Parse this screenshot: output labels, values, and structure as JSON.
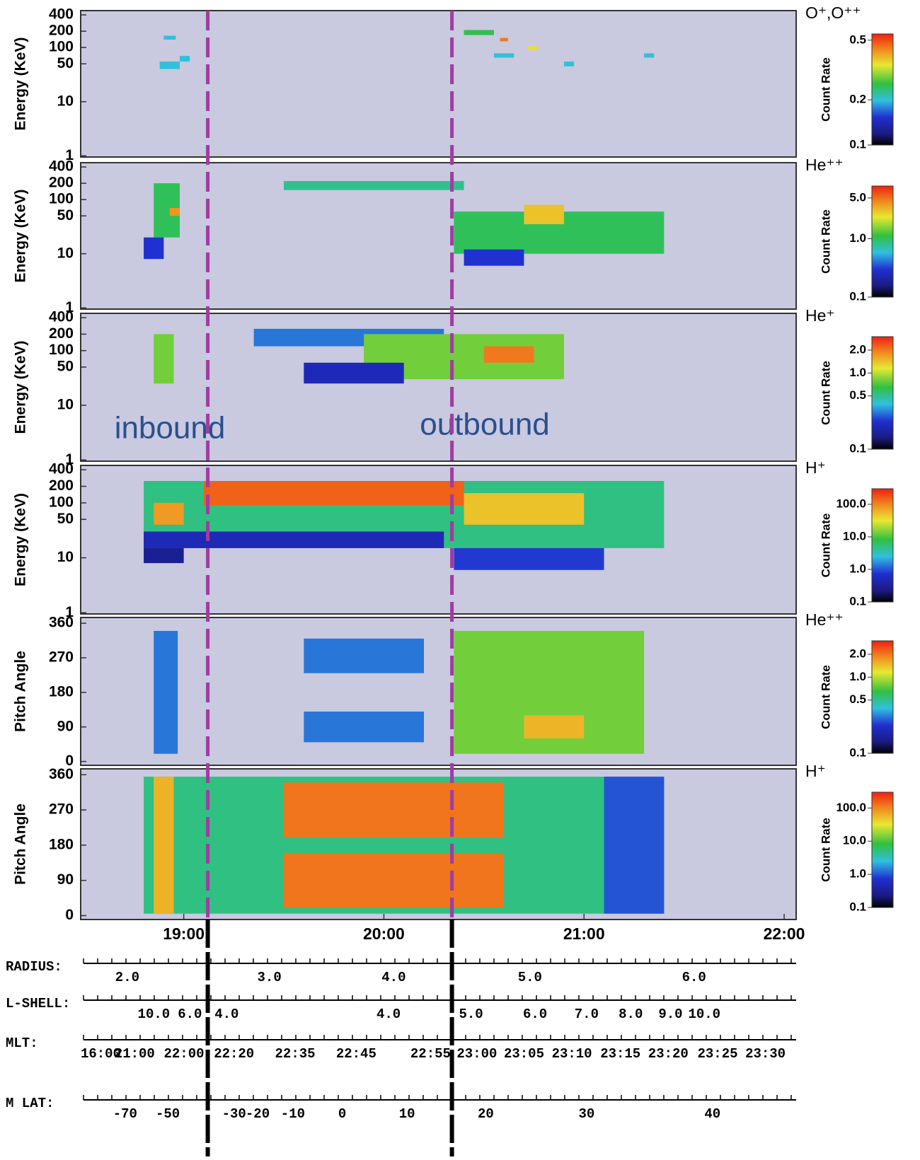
{
  "chart_data": [
    {
      "type": "spectrogram",
      "species": "O⁺,O⁺⁺",
      "ylabel": "Energy (KeV)",
      "clabel": "Count Rate",
      "log": true,
      "xlim": [
        18.485,
        22.06
      ],
      "ylim": [
        0.95,
        480
      ],
      "yticks": [
        1,
        10,
        50,
        100,
        200,
        400
      ],
      "clim": [
        0.1,
        0.55
      ],
      "cticks": [
        0.1,
        0.2,
        0.5
      ],
      "cells": [
        {
          "t0": 18.88,
          "t1": 18.98,
          "y0": 40,
          "y1": 55,
          "v": 0.2
        },
        {
          "t0": 18.9,
          "t1": 18.96,
          "y0": 140,
          "y1": 165,
          "v": 0.2
        },
        {
          "t0": 18.98,
          "t1": 19.03,
          "y0": 55,
          "y1": 70,
          "v": 0.2
        },
        {
          "t0": 20.4,
          "t1": 20.55,
          "y0": 170,
          "y1": 210,
          "v": 0.25
        },
        {
          "t0": 20.55,
          "t1": 20.65,
          "y0": 65,
          "y1": 78,
          "v": 0.2
        },
        {
          "t0": 20.58,
          "t1": 20.62,
          "y0": 130,
          "y1": 150,
          "v": 0.45
        },
        {
          "t0": 20.72,
          "t1": 20.77,
          "y0": 90,
          "y1": 105,
          "v": 0.35
        },
        {
          "t0": 20.9,
          "t1": 20.95,
          "y0": 45,
          "y1": 55,
          "v": 0.2
        },
        {
          "t0": 21.3,
          "t1": 21.35,
          "y0": 65,
          "y1": 78,
          "v": 0.2
        }
      ]
    },
    {
      "type": "spectrogram",
      "species": "He⁺⁺",
      "ylabel": "Energy (KeV)",
      "clabel": "Count Rate",
      "log": true,
      "xlim": [
        18.485,
        22.06
      ],
      "ylim": [
        0.95,
        480
      ],
      "yticks": [
        1,
        10,
        50,
        100,
        200,
        400
      ],
      "clim": [
        0.1,
        8
      ],
      "cticks": [
        0.1,
        {
          "value": 1,
          "label": "1.0"
        },
        {
          "value": 5,
          "label": "5.0"
        }
      ],
      "cells": [
        {
          "t0": 18.85,
          "t1": 18.98,
          "y0": 20,
          "y1": 200,
          "v": 1.0
        },
        {
          "t0": 18.93,
          "t1": 18.98,
          "y0": 50,
          "y1": 70,
          "v": 4.0
        },
        {
          "t0": 18.8,
          "t1": 18.9,
          "y0": 8,
          "y1": 20,
          "v": 0.3
        },
        {
          "t0": 19.5,
          "t1": 20.4,
          "y0": 150,
          "y1": 220,
          "v": 0.8
        },
        {
          "t0": 20.35,
          "t1": 21.4,
          "y0": 10,
          "y1": 60,
          "v": 1.0
        },
        {
          "t0": 20.7,
          "t1": 20.9,
          "y0": 35,
          "y1": 80,
          "v": 3.0
        },
        {
          "t0": 20.4,
          "t1": 20.7,
          "y0": 6,
          "y1": 12,
          "v": 0.3
        }
      ]
    },
    {
      "type": "spectrogram",
      "species": "He⁺",
      "ylabel": "Energy (KeV)",
      "clabel": "Count Rate",
      "log": true,
      "xlim": [
        18.485,
        22.06
      ],
      "ylim": [
        0.95,
        480
      ],
      "yticks": [
        1,
        10,
        50,
        100,
        200,
        400
      ],
      "clim": [
        0.1,
        3
      ],
      "cticks": [
        0.1,
        0.5,
        {
          "value": 1,
          "label": "1.0"
        },
        {
          "value": 2,
          "label": "2.0"
        }
      ],
      "annotations": [
        "inbound",
        "outbound"
      ],
      "cells": [
        {
          "t0": 18.85,
          "t1": 18.95,
          "y0": 25,
          "y1": 200,
          "v": 0.8
        },
        {
          "t0": 19.35,
          "t1": 20.3,
          "y0": 120,
          "y1": 250,
          "v": 0.3
        },
        {
          "t0": 19.9,
          "t1": 20.9,
          "y0": 30,
          "y1": 200,
          "v": 0.8
        },
        {
          "t0": 20.5,
          "t1": 20.75,
          "y0": 60,
          "y1": 120,
          "v": 2.0
        },
        {
          "t0": 19.6,
          "t1": 20.1,
          "y0": 25,
          "y1": 60,
          "v": 0.2
        }
      ]
    },
    {
      "type": "spectrogram",
      "species": "H⁺",
      "ylabel": "Energy (KeV)",
      "clabel": "Count Rate",
      "log": true,
      "xlim": [
        18.485,
        22.06
      ],
      "ylim": [
        0.95,
        480
      ],
      "yticks": [
        1,
        10,
        50,
        100,
        200,
        400
      ],
      "clim": [
        0.1,
        300
      ],
      "cticks": [
        0.1,
        {
          "value": 1,
          "label": "1.0"
        },
        {
          "value": 10,
          "label": "10.0"
        },
        {
          "value": 100,
          "label": "100.0"
        }
      ],
      "cells": [
        {
          "t0": 18.8,
          "t1": 21.4,
          "y0": 15,
          "y1": 250,
          "v": 5
        },
        {
          "t0": 18.8,
          "t1": 20.3,
          "y0": 15,
          "y1": 30,
          "v": 0.5
        },
        {
          "t0": 20.35,
          "t1": 21.1,
          "y0": 6,
          "y1": 15,
          "v": 0.8
        },
        {
          "t0": 18.8,
          "t1": 19.0,
          "y0": 8,
          "y1": 15,
          "v": 0.3
        },
        {
          "t0": 19.1,
          "t1": 20.4,
          "y0": 90,
          "y1": 250,
          "v": 150
        },
        {
          "t0": 18.85,
          "t1": 19.0,
          "y0": 40,
          "y1": 100,
          "v": 80
        },
        {
          "t0": 20.4,
          "t1": 21.0,
          "y0": 40,
          "y1": 150,
          "v": 50
        }
      ]
    },
    {
      "type": "spectrogram",
      "species": "He⁺⁺",
      "ylabel": "Pitch Angle",
      "clabel": "Count Rate",
      "log": false,
      "xlim": [
        18.485,
        22.06
      ],
      "ylim": [
        -10,
        375
      ],
      "yticks": [
        0,
        90,
        180,
        270,
        360
      ],
      "clim": [
        0.1,
        3
      ],
      "cticks": [
        0.1,
        0.5,
        {
          "value": 1,
          "label": "1.0"
        },
        {
          "value": 2,
          "label": "2.0"
        }
      ],
      "cells": [
        {
          "t0": 18.85,
          "t1": 18.97,
          "y0": 20,
          "y1": 340,
          "v": 0.3
        },
        {
          "t0": 19.6,
          "t1": 20.2,
          "y0": 50,
          "y1": 130,
          "v": 0.3
        },
        {
          "t0": 19.6,
          "t1": 20.2,
          "y0": 230,
          "y1": 320,
          "v": 0.3
        },
        {
          "t0": 20.35,
          "t1": 21.3,
          "y0": 20,
          "y1": 340,
          "v": 0.8
        },
        {
          "t0": 20.7,
          "t1": 21.0,
          "y0": 60,
          "y1": 120,
          "v": 1.5
        }
      ]
    },
    {
      "type": "spectrogram",
      "species": "H⁺",
      "ylabel": "Pitch Angle",
      "clabel": "Count Rate",
      "log": false,
      "xlim": [
        18.485,
        22.06
      ],
      "ylim": [
        -10,
        375
      ],
      "yticks": [
        0,
        90,
        180,
        270,
        360
      ],
      "xticks": [
        {
          "value": 19,
          "label": "19:00"
        },
        {
          "value": 20,
          "label": "20:00"
        },
        {
          "value": 21,
          "label": "21:00"
        },
        {
          "value": 22,
          "label": "22:00"
        }
      ],
      "clim": [
        0.1,
        300
      ],
      "cticks": [
        0.1,
        {
          "value": 1,
          "label": "1.0"
        },
        {
          "value": 10,
          "label": "10.0"
        },
        {
          "value": 100,
          "label": "100.0"
        }
      ],
      "cells": [
        {
          "t0": 18.8,
          "t1": 21.4,
          "y0": 5,
          "y1": 355,
          "v": 5
        },
        {
          "t0": 18.85,
          "t1": 18.95,
          "y0": 5,
          "y1": 355,
          "v": 60
        },
        {
          "t0": 19.5,
          "t1": 20.6,
          "y0": 20,
          "y1": 160,
          "v": 120
        },
        {
          "t0": 19.5,
          "t1": 20.6,
          "y0": 200,
          "y1": 340,
          "v": 120
        },
        {
          "t0": 21.1,
          "t1": 21.4,
          "y0": 5,
          "y1": 355,
          "v": 1.0
        }
      ]
    }
  ],
  "boundaries": [
    19.12,
    20.34
  ],
  "ephemeris": [
    {
      "name": "RADIUS:",
      "labels": [
        "2.0",
        "3.0",
        "4.0",
        "5.0",
        "6.0"
      ]
    },
    {
      "name": "L-SHELL:",
      "labels": [
        "10.0",
        "6.0",
        "4.0",
        "4.0",
        "5.0",
        "6.0",
        "7.0",
        "8.0",
        "9.0",
        "10.0"
      ]
    },
    {
      "name": "MLT:",
      "labels": [
        "16:00",
        "21:00",
        "22:00",
        "22:20",
        "22:35",
        "22:45",
        "22:55",
        "23:00",
        "23:05",
        "23:10",
        "23:15",
        "23:20",
        "23:25",
        "23:30"
      ]
    },
    {
      "name": "M LAT:",
      "labels": [
        "-70",
        "-50",
        "-30",
        "-20",
        "-10",
        "0",
        "10",
        "20",
        "30",
        "40"
      ]
    }
  ]
}
